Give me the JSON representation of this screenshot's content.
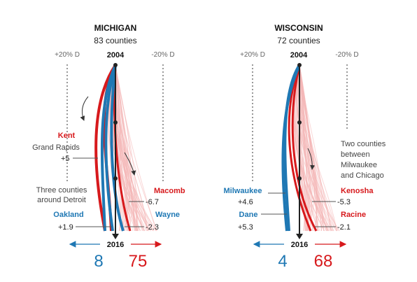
{
  "chart_data": [
    {
      "type": "line",
      "title": "MICHIGAN",
      "subtitle": "83 counties",
      "x_start_label": "2004",
      "x_end_label": "2016",
      "scale_left_label": "+20% D",
      "scale_right_label": "-20% D",
      "counties_toward_d": "8",
      "counties_toward_r": "75",
      "colors": {
        "dem": "#1f78b4",
        "rep": "#d7191c",
        "background_lines": "#f4b6b6"
      },
      "series": [
        {
          "name": "Kent",
          "sublabel": "Grand Rapids",
          "party": "dem",
          "value_label": "+5",
          "value": 5
        },
        {
          "name": "Oakland",
          "party": "dem",
          "value_label": "+1.9",
          "value": 1.9
        },
        {
          "name": "Macomb",
          "party": "rep",
          "value_label": "-6.7",
          "value": -6.7
        },
        {
          "name": "Wayne",
          "party": "dem",
          "value_label": "-2.3",
          "value": -2.3
        }
      ],
      "annotations": [
        "Three counties",
        "around Detroit"
      ]
    },
    {
      "type": "line",
      "title": "WISCONSIN",
      "subtitle": "72 counties",
      "x_start_label": "2004",
      "x_end_label": "2016",
      "scale_left_label": "+20% D",
      "scale_right_label": "-20% D",
      "counties_toward_d": "4",
      "counties_toward_r": "68",
      "colors": {
        "dem": "#1f78b4",
        "rep": "#d7191c",
        "background_lines": "#f4b6b6"
      },
      "series": [
        {
          "name": "Milwaukee",
          "party": "dem",
          "value_label": "+4.6",
          "value": 4.6
        },
        {
          "name": "Dane",
          "party": "dem",
          "value_label": "+5.3",
          "value": 5.3
        },
        {
          "name": "Kenosha",
          "party": "rep",
          "value_label": "-5.3",
          "value": -5.3
        },
        {
          "name": "Racine",
          "party": "rep",
          "value_label": "-2.1",
          "value": -2.1
        }
      ],
      "annotations": [
        "Two counties",
        "between",
        "Milwaukee",
        "and Chicago"
      ]
    }
  ]
}
